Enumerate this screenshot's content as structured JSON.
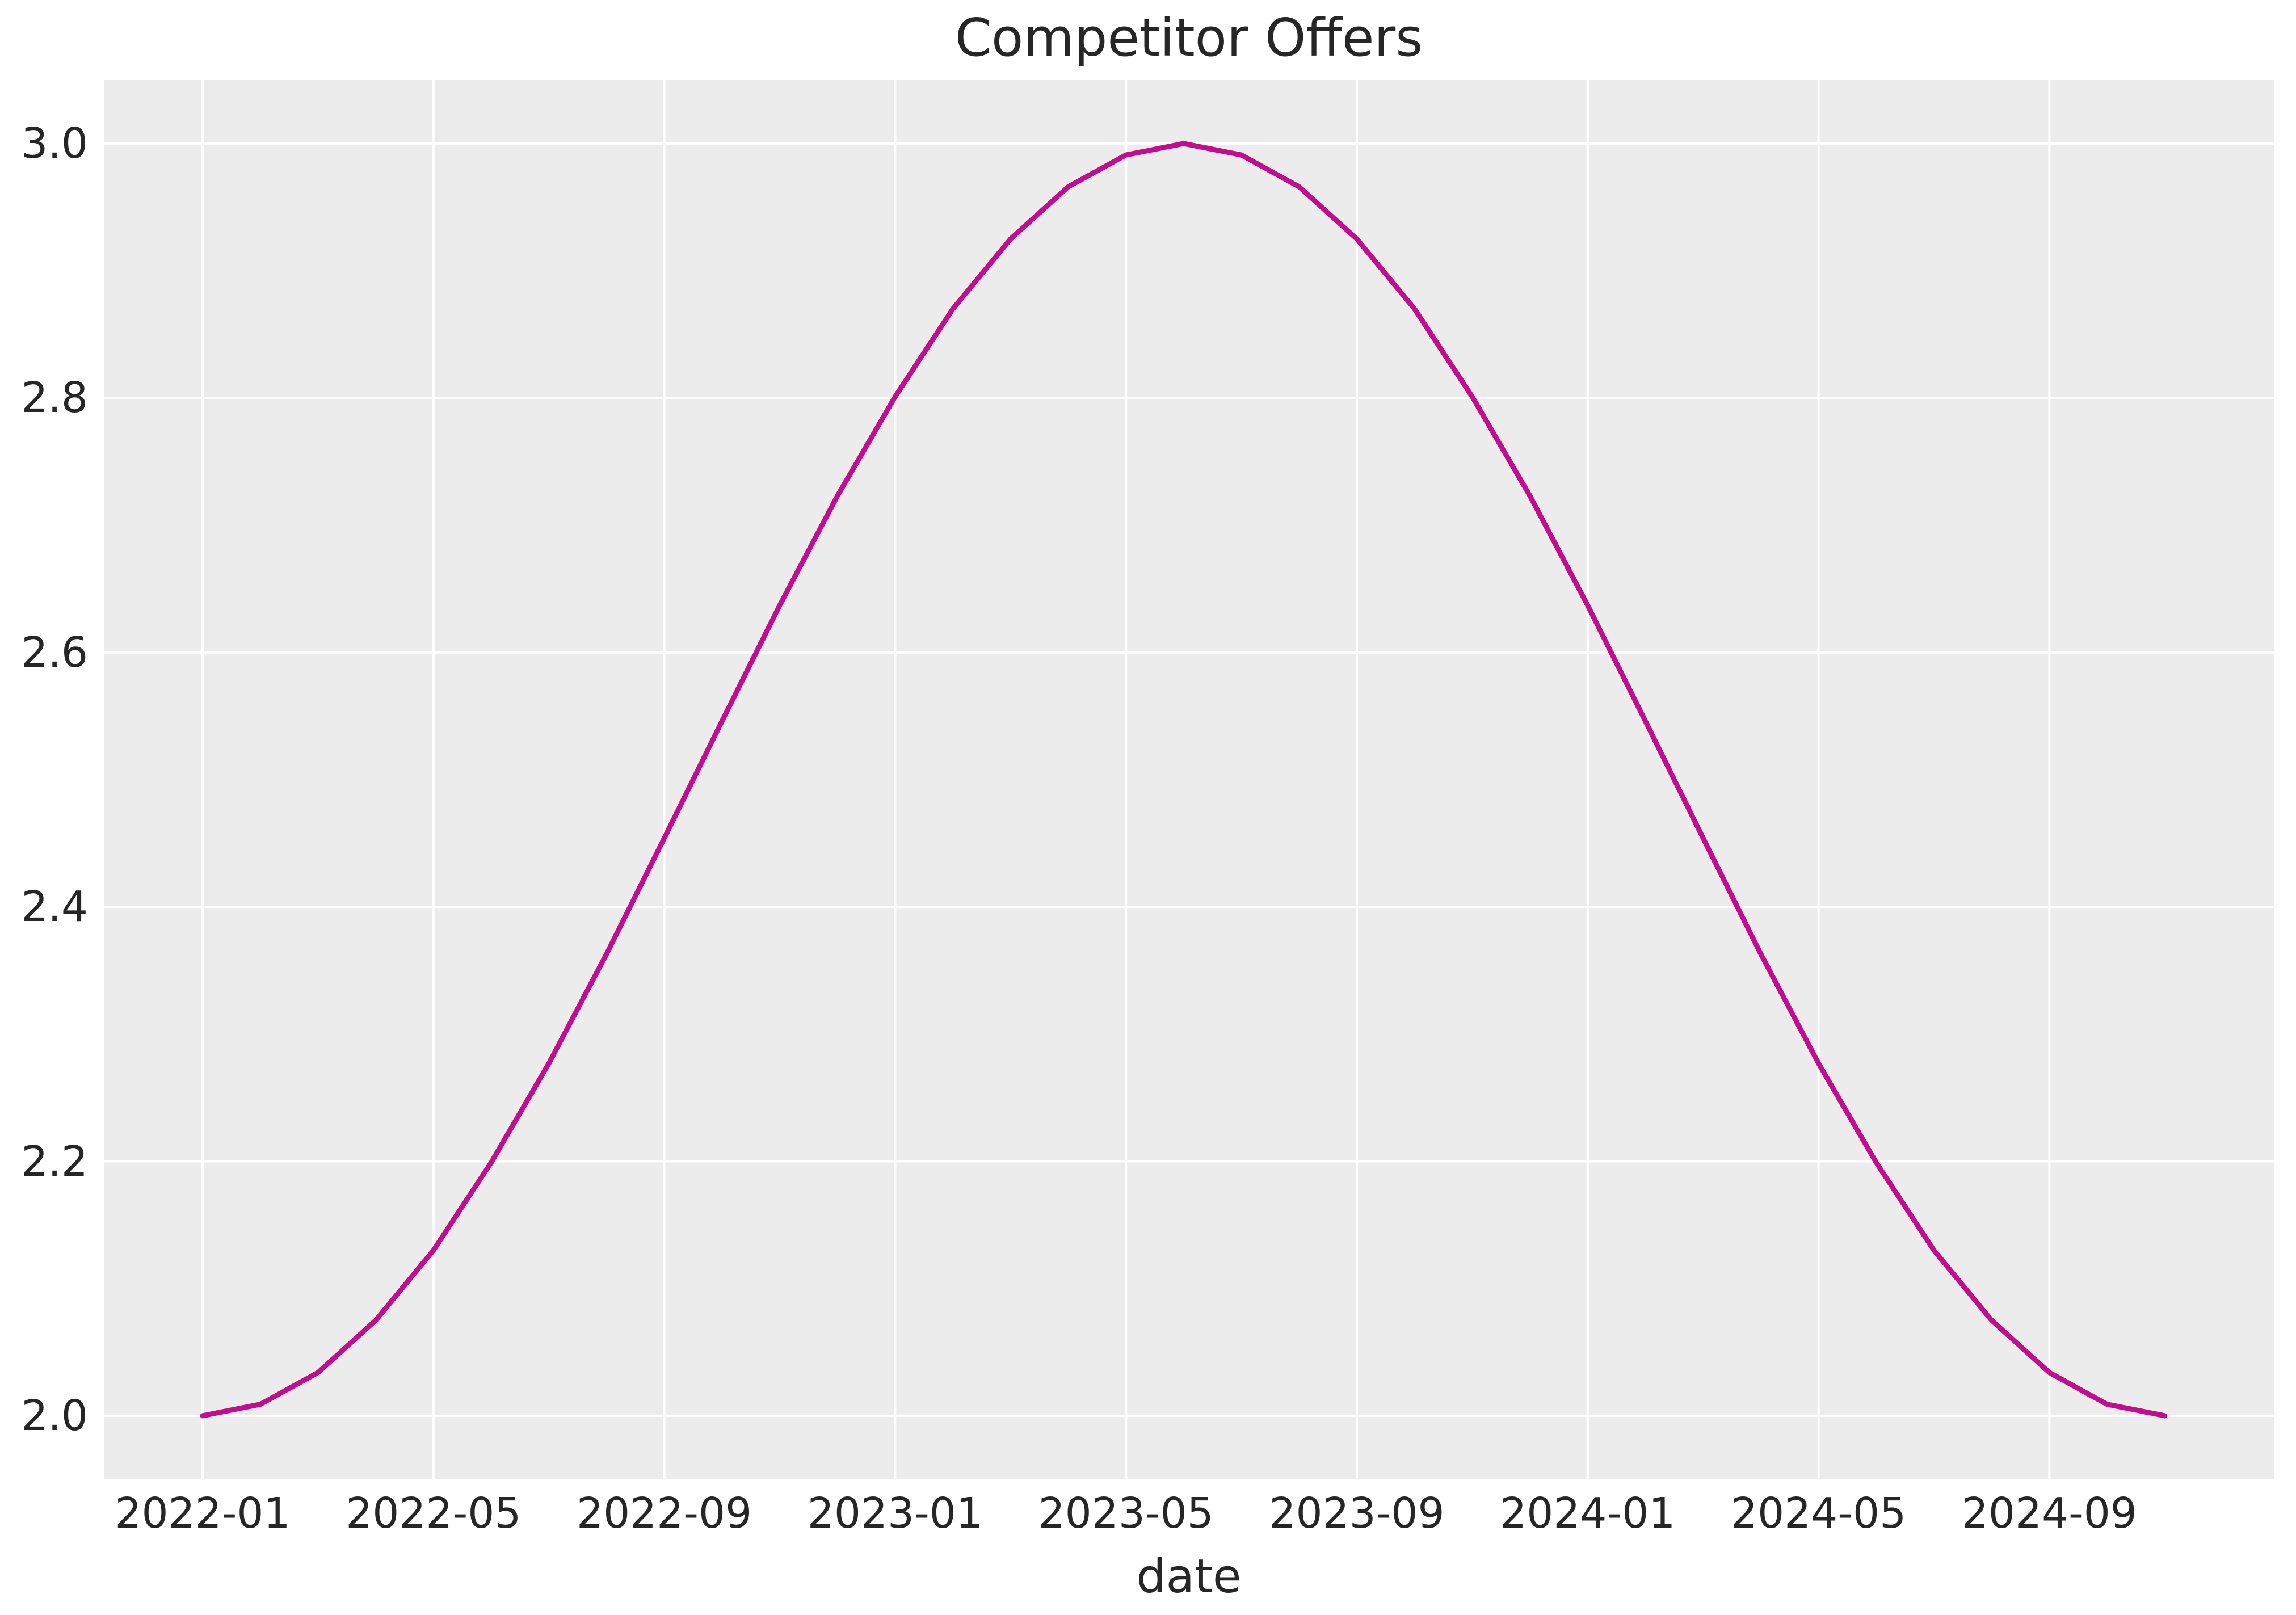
{
  "title": "Competitor Offers",
  "axes": {
    "xlabel": "date",
    "x_tick_labels": [
      "2022-01",
      "2022-05",
      "2022-09",
      "2023-01",
      "2023-05",
      "2023-09",
      "2024-01",
      "2024-05",
      "2024-09"
    ],
    "y_tick_labels": [
      "2.0",
      "2.2",
      "2.4",
      "2.6",
      "2.8",
      "3.0"
    ]
  },
  "colors": {
    "line": "#C00E8E",
    "plot_background": "#ECECEC",
    "gridline": "#FFFFFF",
    "text": "#262626",
    "figure_background": "#FFFFFF"
  },
  "chart_data": {
    "type": "line",
    "title": "Competitor Offers",
    "xlabel": "date",
    "ylabel": "",
    "grid": true,
    "legend": false,
    "xlim_months_rel_first_point": [
      -1.7,
      35.7
    ],
    "ylim": [
      1.95,
      3.05
    ],
    "x": [
      "2022-01",
      "2022-02",
      "2022-03",
      "2022-04",
      "2022-05",
      "2022-06",
      "2022-07",
      "2022-08",
      "2022-09",
      "2022-10",
      "2022-11",
      "2022-12",
      "2023-01",
      "2023-02",
      "2023-03",
      "2023-04",
      "2023-05",
      "2023-06",
      "2023-07",
      "2023-08",
      "2023-09",
      "2023-10",
      "2023-11",
      "2023-12",
      "2024-01",
      "2024-02",
      "2024-03",
      "2024-04",
      "2024-05",
      "2024-06",
      "2024-07",
      "2024-08",
      "2024-09",
      "2024-10",
      "2024-11"
    ],
    "series": [
      {
        "name": "Competitor Offers",
        "values": [
          2.0,
          2.009,
          2.034,
          2.075,
          2.13,
          2.199,
          2.277,
          2.363,
          2.454,
          2.546,
          2.637,
          2.723,
          2.801,
          2.87,
          2.925,
          2.966,
          2.991,
          3.0,
          2.991,
          2.966,
          2.925,
          2.87,
          2.801,
          2.723,
          2.637,
          2.546,
          2.454,
          2.363,
          2.277,
          2.199,
          2.13,
          2.075,
          2.034,
          2.009,
          2.0
        ]
      }
    ]
  }
}
